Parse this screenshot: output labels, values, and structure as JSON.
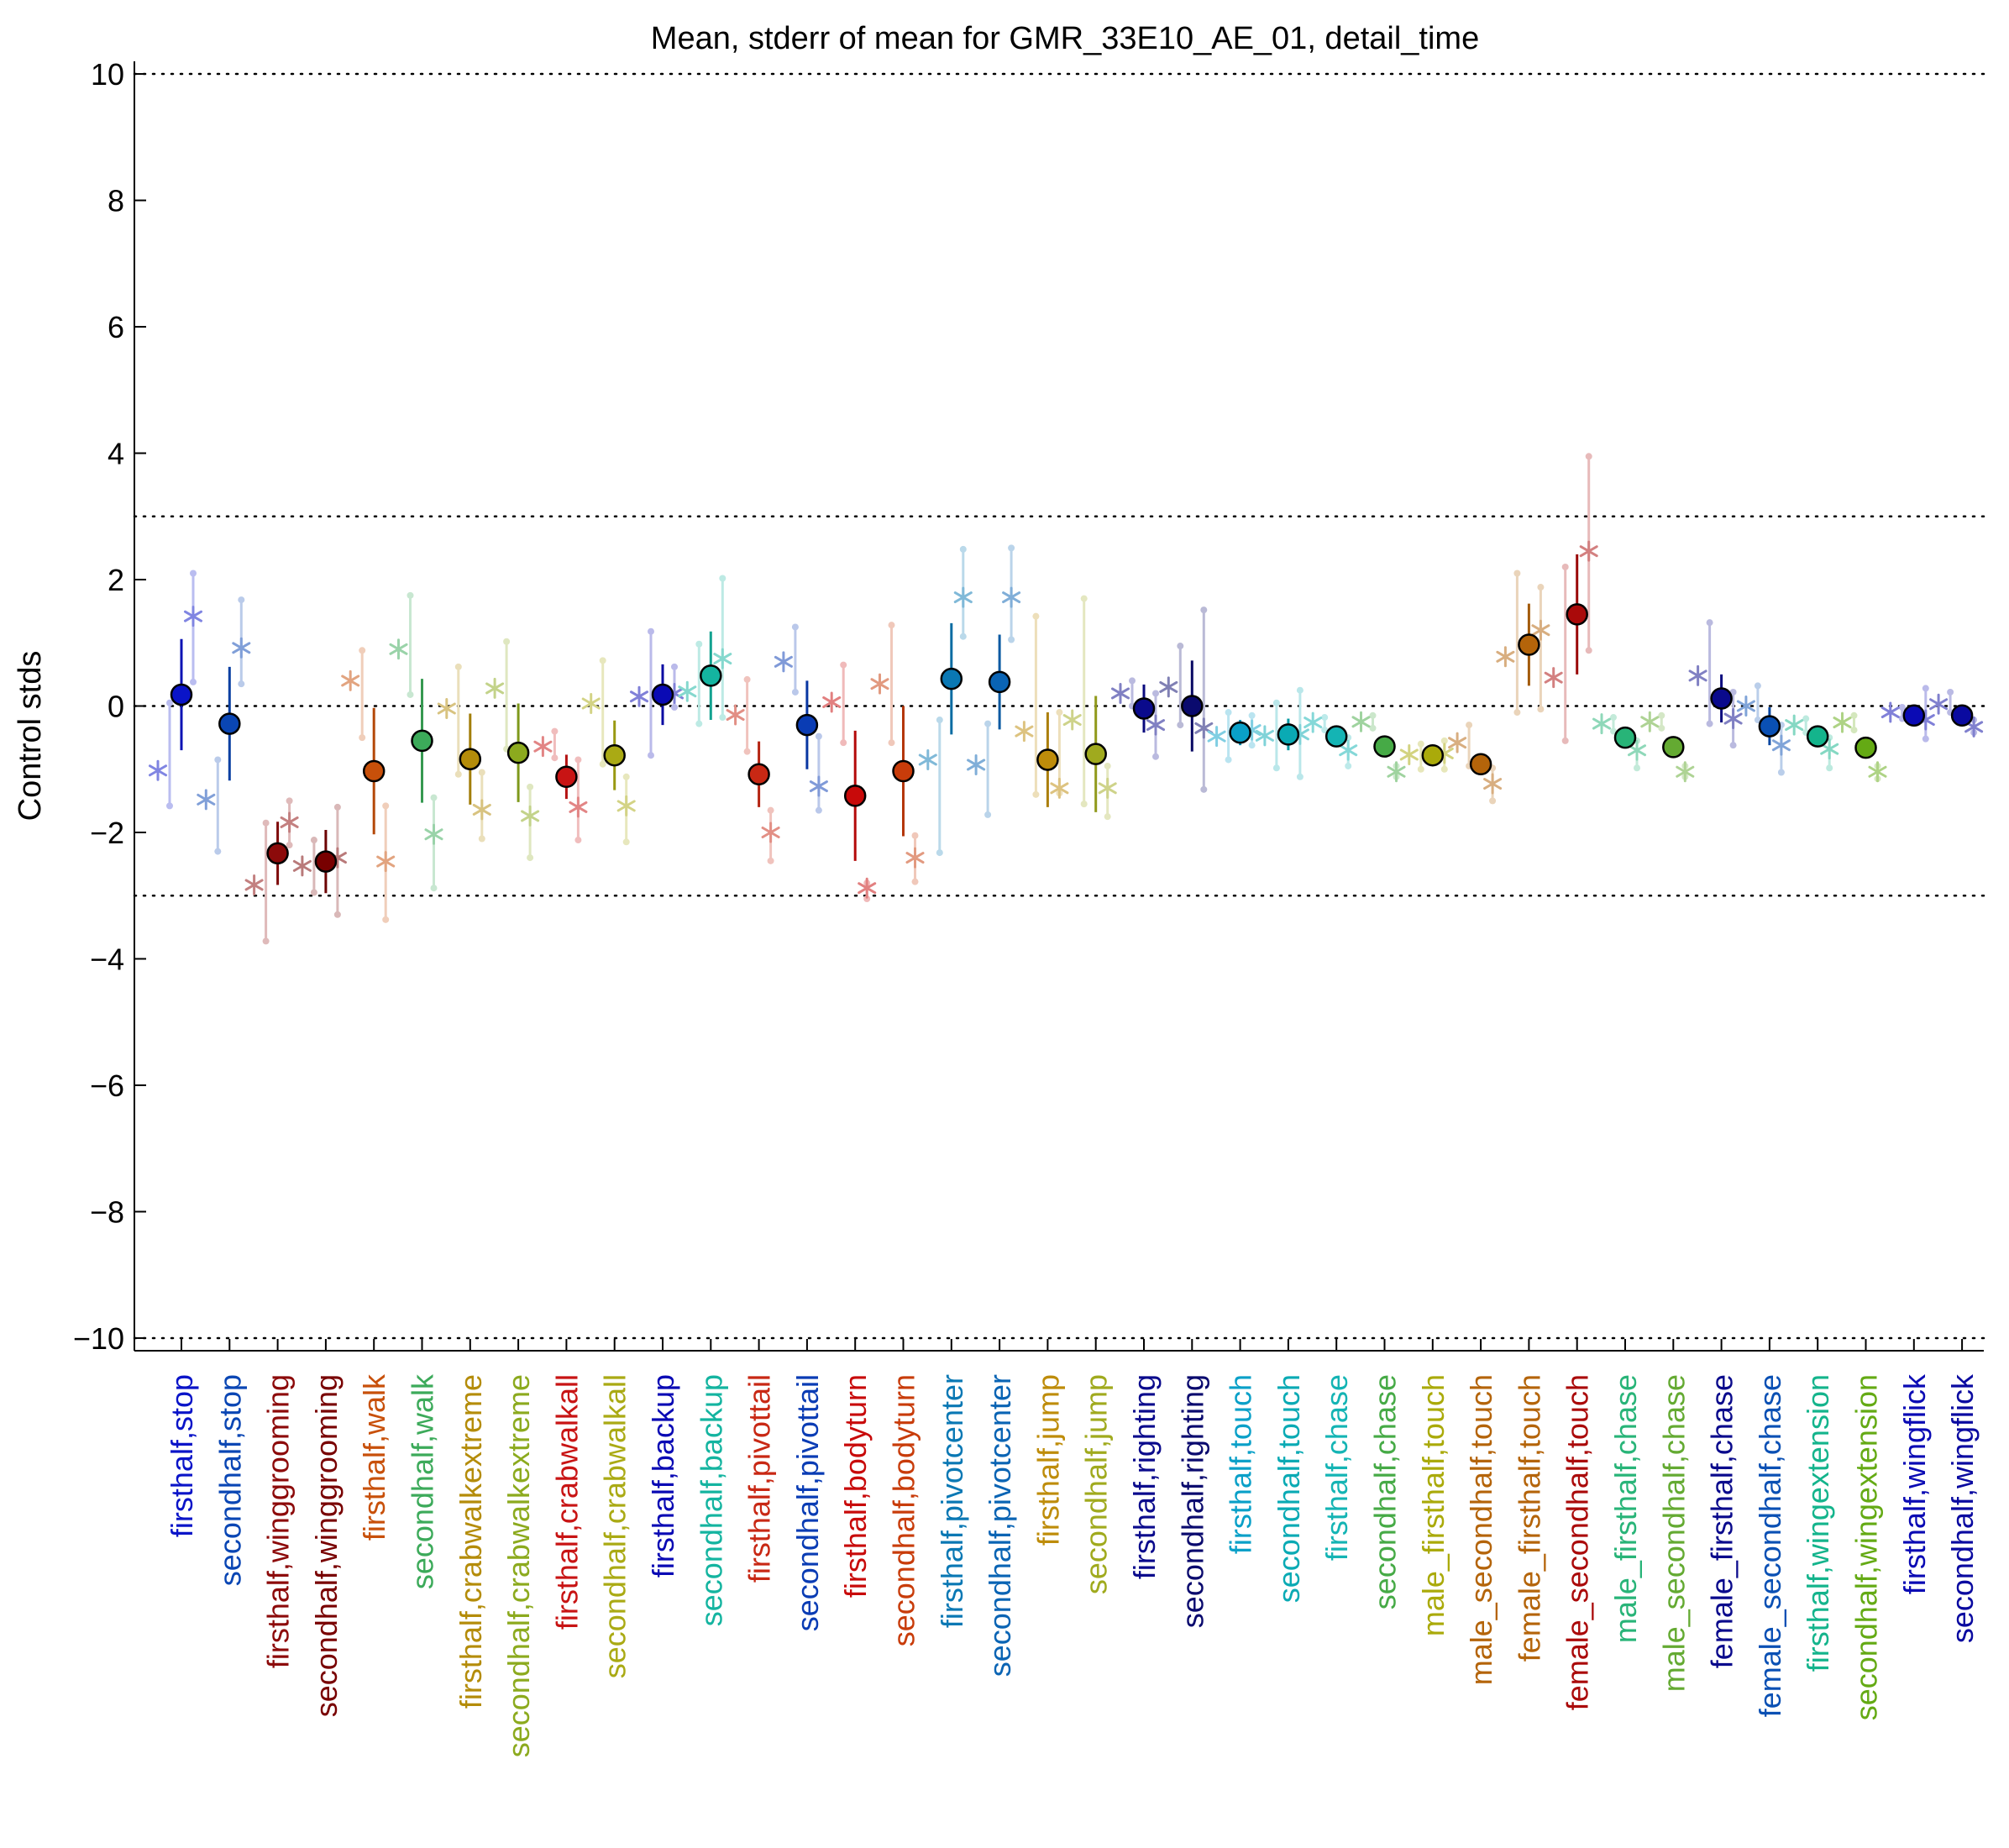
{
  "chart_data": {
    "type": "scatter",
    "title": "Mean, stderr of mean for GMR_33E10_AE_01, detail_time",
    "xlabel": "",
    "ylabel": "Control stds",
    "ylim": [
      -10.2,
      10.2
    ],
    "yticks": [
      10,
      8,
      6,
      4,
      2,
      0,
      -2,
      -4,
      -6,
      -8,
      -10
    ],
    "ytick_labels": [
      "10",
      "8",
      "6",
      "4",
      "2",
      "0",
      "−2",
      "−4",
      "−6",
      "−8",
      "−10"
    ],
    "reference_lines": [
      10,
      3,
      0,
      -3,
      -10
    ],
    "grid": false,
    "legend": "none",
    "categories": [
      "firsthalf,stop",
      "secondhalf,stop",
      "firsthalf,winggrooming",
      "secondhalf,winggrooming",
      "firsthalf,walk",
      "secondhalf,walk",
      "firsthalf,crabwalkextreme",
      "secondhalf,crabwalkextreme",
      "firsthalf,crabwalkall",
      "secondhalf,crabwalkall",
      "firsthalf,backup",
      "secondhalf,backup",
      "firsthalf,pivottail",
      "secondhalf,pivottail",
      "firsthalf,bodyturn",
      "secondhalf,bodyturn",
      "firsthalf,pivotcenter",
      "secondhalf,pivotcenter",
      "firsthalf,jump",
      "secondhalf,jump",
      "firsthalf,righting",
      "secondhalf,righting",
      "firsthalf,touch",
      "secondhalf,touch",
      "firsthalf,chase",
      "secondhalf,chase",
      "male_firsthalf,touch",
      "male_secondhalf,touch",
      "female_firsthalf,touch",
      "female_secondhalf,touch",
      "male_firsthalf,chase",
      "male_secondhalf,chase",
      "female_firsthalf,chase",
      "female_secondhalf,chase",
      "firsthalf,wingextension",
      "secondhalf,wingextension",
      "firsthalf,wingflick",
      "secondhalf,wingflick"
    ],
    "colors": [
      "#0a14c8",
      "#0a46b4",
      "#8c0a0a",
      "#780000",
      "#c8500a",
      "#3caa5a",
      "#b48c0a",
      "#8caa1e",
      "#c81414",
      "#aaaa14",
      "#0a0ab4",
      "#14b4a0",
      "#c82814",
      "#0a3cb4",
      "#c80a0a",
      "#c83c0a",
      "#0a78b4",
      "#0a64b4",
      "#be8c0a",
      "#a0aa1e",
      "#0a0a8c",
      "#0a0a6e",
      "#0aa0c8",
      "#0aaab4",
      "#14b4b4",
      "#46aa46",
      "#aaaa0a",
      "#b4640a",
      "#b4640a",
      "#aa0a0a",
      "#28b478",
      "#64aa32",
      "#0a0a8c",
      "#0a50b4",
      "#14b48c",
      "#64aa14",
      "#0a0ab4",
      "#0a0aa0"
    ],
    "mean": [
      0.18,
      -0.28,
      -2.33,
      -2.46,
      -1.03,
      -0.55,
      -0.84,
      -0.74,
      -1.12,
      -0.78,
      0.18,
      0.48,
      -1.08,
      -0.3,
      -1.42,
      -1.03,
      0.43,
      0.38,
      -0.85,
      -0.76,
      -0.04,
      0.0,
      -0.42,
      -0.45,
      -0.48,
      -0.64,
      -0.78,
      -0.92,
      0.97,
      1.45,
      -0.5,
      -0.65,
      0.12,
      -0.32,
      -0.48,
      -0.66,
      -0.15,
      -0.15
    ],
    "stderr": [
      0.88,
      0.9,
      0.5,
      0.5,
      1.0,
      0.98,
      0.72,
      0.78,
      0.35,
      0.55,
      0.48,
      0.7,
      0.52,
      0.7,
      1.03,
      1.03,
      0.88,
      0.75,
      0.75,
      0.92,
      0.38,
      0.72,
      0.2,
      0.25,
      0.15,
      0.12,
      0.15,
      0.12,
      0.65,
      0.95,
      0.1,
      0.1,
      0.38,
      0.3,
      0.1,
      0.1,
      0.08,
      0.08
    ],
    "firsthalf_star": [
      -1.02,
      -1.48,
      -2.83,
      -2.53,
      0.4,
      0.9,
      -0.04,
      0.28,
      -0.64,
      0.04,
      0.15,
      0.23,
      -0.14,
      0.7,
      0.06,
      0.35,
      -0.85,
      -0.93,
      -0.4,
      -0.22,
      0.2,
      0.3,
      -0.48,
      -0.47,
      -0.26,
      -0.25,
      -0.77,
      -0.58,
      0.78,
      0.45,
      -0.28,
      -0.25,
      0.48,
      0.0,
      -0.3,
      -0.26,
      -0.1,
      0.03
    ],
    "secondhalf_star": [
      1.42,
      0.92,
      -1.84,
      -2.4,
      -2.46,
      -2.03,
      -1.64,
      -1.74,
      -1.6,
      -1.58,
      0.2,
      0.75,
      -2.0,
      -1.27,
      -2.88,
      -2.4,
      1.72,
      1.72,
      -1.3,
      -1.3,
      -0.3,
      -0.35,
      -0.38,
      -0.45,
      -0.7,
      -1.04,
      -0.75,
      -1.23,
      1.2,
      2.45,
      -0.7,
      -1.04,
      -0.2,
      -0.62,
      -0.68,
      -1.04,
      -0.22,
      -0.33
    ],
    "firsthalf_range": [
      [
        -1.58,
        0.05
      ],
      [
        -2.3,
        -0.85
      ],
      [
        -3.72,
        -1.85
      ],
      [
        -2.95,
        -2.12
      ],
      [
        -0.5,
        0.88
      ],
      [
        0.18,
        1.75
      ],
      [
        -1.08,
        0.62
      ],
      [
        -0.68,
        1.02
      ],
      [
        -0.82,
        -0.4
      ],
      [
        -0.92,
        0.72
      ],
      [
        -0.78,
        1.18
      ],
      [
        -0.28,
        0.98
      ],
      [
        -0.72,
        0.42
      ],
      [
        0.22,
        1.25
      ],
      [
        -0.58,
        0.65
      ],
      [
        -0.58,
        1.28
      ],
      [
        -2.32,
        -0.22
      ],
      [
        -1.72,
        -0.28
      ],
      [
        -1.4,
        1.42
      ],
      [
        -1.55,
        1.7
      ],
      [
        0.0,
        0.4
      ],
      [
        -0.3,
        0.95
      ],
      [
        -0.85,
        -0.1
      ],
      [
        -0.98,
        0.05
      ],
      [
        -0.38,
        -0.18
      ],
      [
        -0.35,
        -0.15
      ],
      [
        -1.0,
        -0.6
      ],
      [
        -0.95,
        -0.3
      ],
      [
        -0.1,
        2.1
      ],
      [
        -0.55,
        2.2
      ],
      [
        -0.4,
        -0.18
      ],
      [
        -0.35,
        -0.15
      ],
      [
        -0.28,
        1.32
      ],
      [
        -0.22,
        0.32
      ],
      [
        -0.42,
        -0.2
      ],
      [
        -0.38,
        -0.15
      ],
      [
        -0.2,
        -0.02
      ],
      [
        -0.1,
        0.22
      ]
    ],
    "secondhalf_range": [
      [
        0.38,
        2.1
      ],
      [
        0.35,
        1.68
      ],
      [
        -2.2,
        -1.5
      ],
      [
        -3.3,
        -1.6
      ],
      [
        -3.38,
        -1.58
      ],
      [
        -2.88,
        -1.45
      ],
      [
        -2.1,
        -1.05
      ],
      [
        -2.4,
        -1.28
      ],
      [
        -2.12,
        -0.85
      ],
      [
        -2.15,
        -1.12
      ],
      [
        -0.02,
        0.62
      ],
      [
        -0.18,
        2.02
      ],
      [
        -2.45,
        -1.65
      ],
      [
        -1.65,
        -0.48
      ],
      [
        -3.05,
        -2.8
      ],
      [
        -2.78,
        -2.05
      ],
      [
        1.1,
        2.48
      ],
      [
        1.05,
        2.5
      ],
      [
        -1.38,
        -0.1
      ],
      [
        -1.75,
        -0.95
      ],
      [
        -0.8,
        0.2
      ],
      [
        -1.32,
        1.52
      ],
      [
        -0.62,
        -0.15
      ],
      [
        -1.12,
        0.25
      ],
      [
        -0.95,
        -0.5
      ],
      [
        -1.12,
        -0.95
      ],
      [
        -1.0,
        -0.55
      ],
      [
        -1.5,
        -0.98
      ],
      [
        -0.05,
        1.88
      ],
      [
        0.88,
        3.95
      ],
      [
        -0.98,
        -0.55
      ],
      [
        -1.12,
        -0.95
      ],
      [
        -0.62,
        0.22
      ],
      [
        -1.05,
        -0.3
      ],
      [
        -0.98,
        -0.5
      ],
      [
        -1.15,
        -0.95
      ],
      [
        -0.52,
        0.28
      ],
      [
        -0.42,
        -0.22
      ]
    ]
  }
}
